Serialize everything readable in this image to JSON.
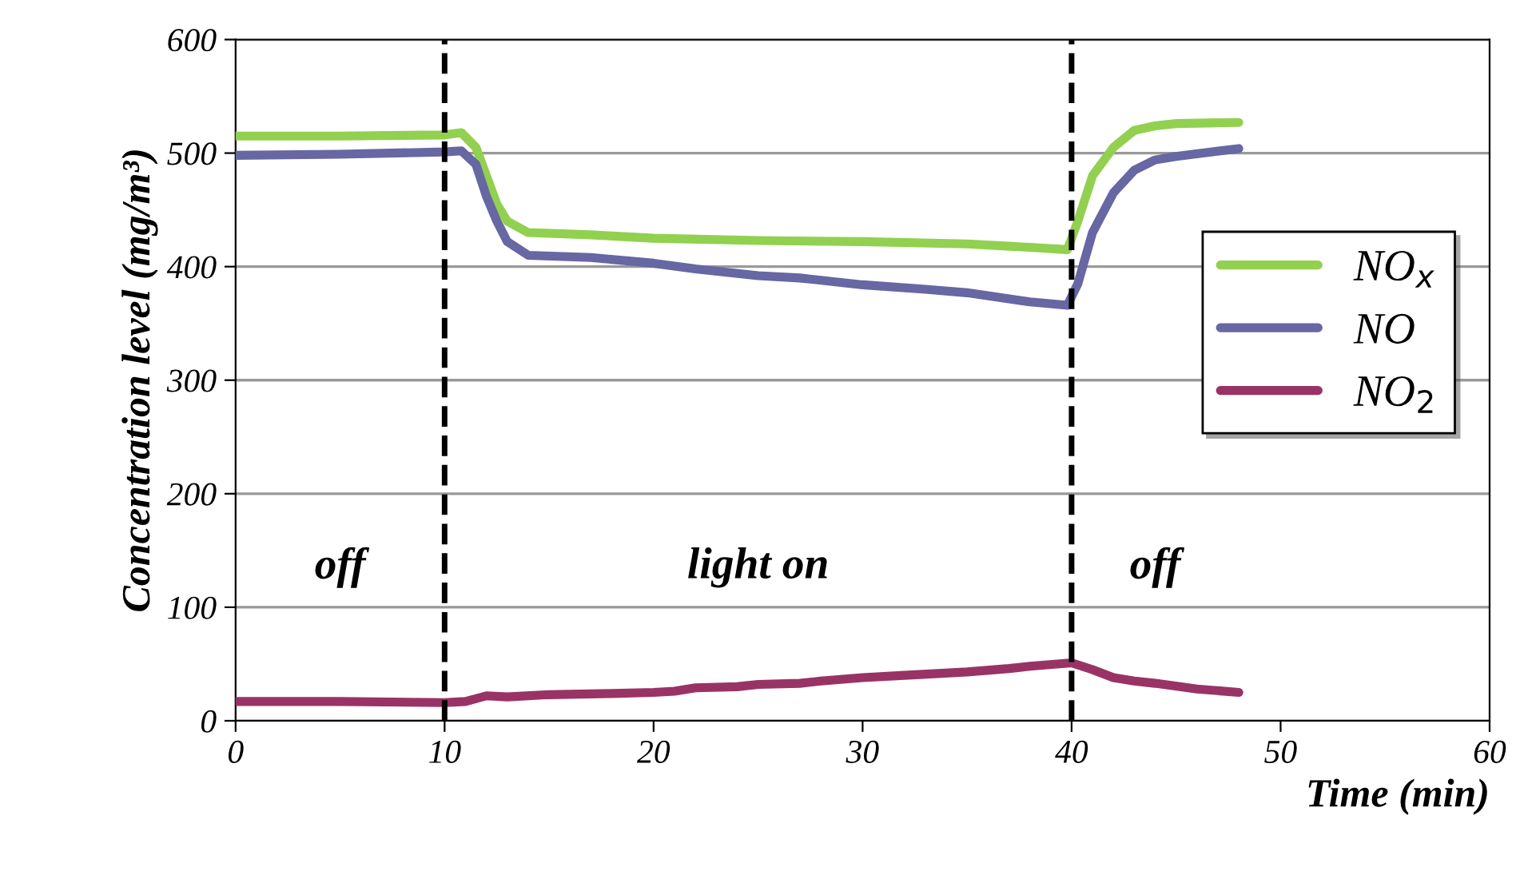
{
  "chart_data": {
    "type": "line",
    "xlabel": "Time (min)",
    "ylabel": "Concentration level (mg/m³)",
    "xlim": [
      0,
      60
    ],
    "xticks": [
      0,
      10,
      20,
      30,
      40,
      50,
      60
    ],
    "ylim": [
      0,
      600
    ],
    "yticks": [
      0,
      100,
      200,
      300,
      400,
      500,
      600
    ],
    "grid": "y",
    "legend": "right",
    "line_style": "solid",
    "marker": "none",
    "series": [
      {
        "name": "NO$_{x}$",
        "color": "#92d050",
        "x": [
          0,
          5,
          10,
          10.8,
          11.5,
          12,
          12.5,
          13,
          14,
          17,
          20,
          25,
          30,
          35,
          38,
          39.8,
          40.3,
          41,
          42,
          43,
          44,
          45,
          48
        ],
        "values": [
          515,
          515,
          516,
          518,
          505,
          480,
          455,
          440,
          430,
          428,
          425,
          423,
          422,
          420,
          417,
          415,
          440,
          480,
          505,
          520,
          524,
          526,
          527
        ]
      },
      {
        "name": "NO",
        "color": "#6667a3",
        "x": [
          0,
          5,
          10,
          10.8,
          11.5,
          12,
          12.5,
          13,
          14,
          17,
          20,
          22,
          25,
          27,
          30,
          33,
          35,
          38,
          39.8,
          40.3,
          41,
          42,
          43,
          44,
          45,
          48
        ],
        "values": [
          498,
          499,
          501,
          502,
          490,
          462,
          440,
          422,
          410,
          408,
          403,
          398,
          392,
          390,
          384,
          380,
          377,
          369,
          366,
          385,
          430,
          465,
          485,
          494,
          497,
          504
        ]
      },
      {
        "name": "NO$_{2}$",
        "color": "#993366",
        "x": [
          0,
          5,
          10,
          11,
          12,
          13,
          15,
          18,
          20,
          21,
          22,
          24,
          25,
          27,
          28,
          30,
          32,
          35,
          37,
          38,
          40,
          41,
          42,
          43,
          44,
          46,
          48
        ],
        "values": [
          17,
          17,
          16,
          17,
          22,
          21,
          23,
          24,
          25,
          26,
          29,
          30,
          32,
          33,
          35,
          38,
          40,
          43,
          46,
          48,
          51,
          45,
          38,
          35,
          33,
          28,
          25
        ]
      }
    ],
    "ref_lines": [
      {
        "axis": "x",
        "value": 10,
        "color": "#000000",
        "line_style": "dashed"
      },
      {
        "axis": "x",
        "value": 40,
        "color": "#000000",
        "line_style": "dashed"
      }
    ],
    "annotations": [
      "off",
      "light on",
      "off"
    ]
  }
}
